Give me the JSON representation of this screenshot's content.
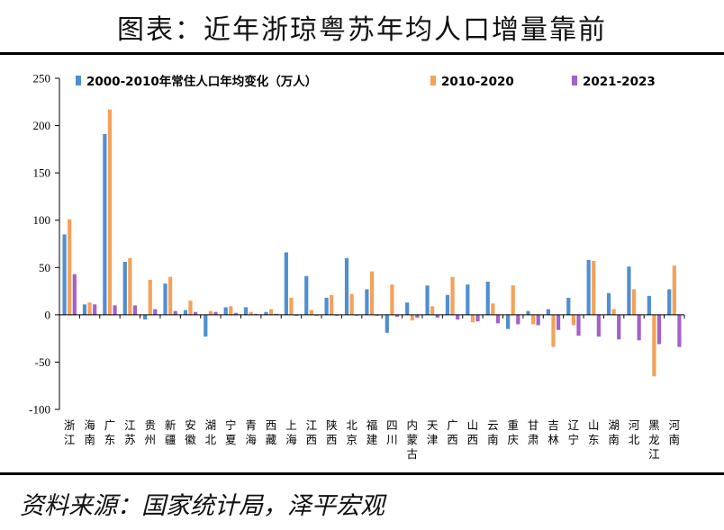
{
  "header": {
    "title": "图表：近年浙琼粤苏年均人口增量靠前"
  },
  "footer": {
    "source": "资料来源：国家统计局，泽平宏观"
  },
  "chart_data": {
    "type": "bar",
    "categories": [
      "浙江",
      "海南",
      "广东",
      "江苏",
      "贵州",
      "新疆",
      "安徽",
      "湖北",
      "宁夏",
      "青海",
      "西藏",
      "上海",
      "江西",
      "陕西",
      "北京",
      "福建",
      "四川",
      "内蒙古",
      "天津",
      "广西",
      "山西",
      "云南",
      "重庆",
      "甘肃",
      "吉林",
      "辽宁",
      "山东",
      "湖南",
      "河北",
      "黑龙江",
      "河南"
    ],
    "series": [
      {
        "name": "2000-2010年常住人口年均变化（万人）",
        "color": "#4f8fd0",
        "values": [
          85,
          11,
          191,
          56,
          -5,
          33,
          5,
          -23,
          8,
          8,
          3,
          66,
          41,
          18,
          60,
          27,
          -19,
          13,
          31,
          21,
          32,
          35,
          -15,
          4,
          6,
          18,
          58,
          23,
          51,
          20,
          27
        ]
      },
      {
        "name": "2010-2020",
        "color": "#f4a15a",
        "values": [
          101,
          13,
          217,
          60,
          37,
          40,
          15,
          4,
          9,
          3,
          6,
          18,
          5,
          21,
          22,
          46,
          32,
          -6,
          9,
          40,
          -8,
          12,
          31,
          -10,
          -34,
          -11,
          57,
          6,
          27,
          -65,
          52
        ]
      },
      {
        "name": "2021-2023",
        "color": "#a262c9",
        "values": [
          43,
          11,
          10,
          10,
          6,
          4,
          3,
          3,
          2,
          1,
          1,
          -1,
          -1,
          -1,
          -1,
          -1,
          -2,
          -3,
          -3,
          -5,
          -7,
          -9,
          -10,
          -11,
          -16,
          -22,
          -23,
          -26,
          -27,
          -31,
          -34
        ]
      }
    ],
    "yticks": [
      250,
      200,
      150,
      100,
      50,
      0,
      -50,
      -100
    ],
    "ylim": [
      -100,
      250
    ],
    "legend_position": "top",
    "grid": false
  }
}
